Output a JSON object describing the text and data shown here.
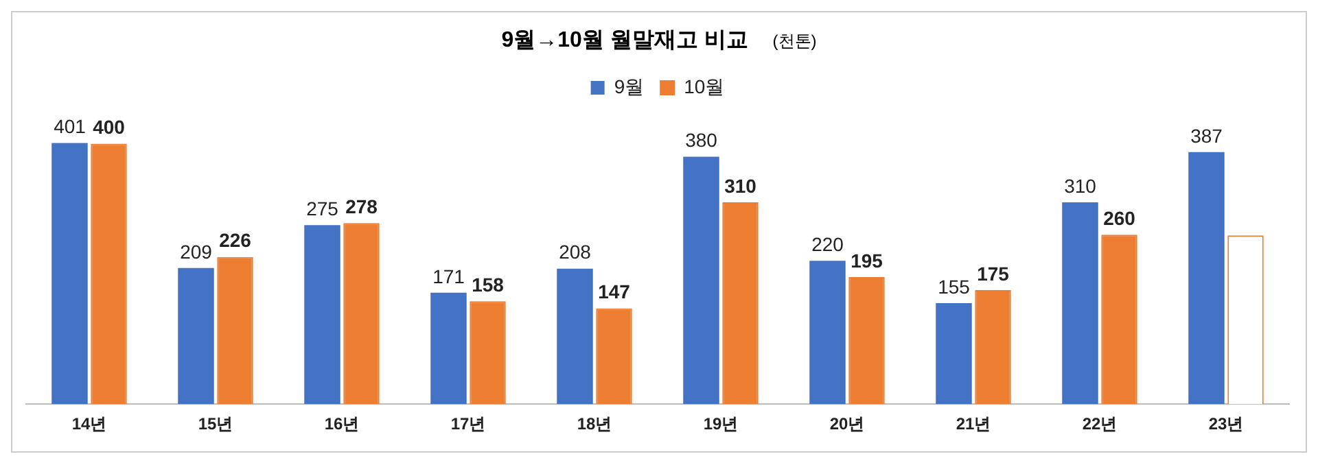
{
  "chart_data": {
    "type": "bar",
    "title": "9월→10월 월말재고 비교",
    "subtitle": "(천톤)",
    "categories": [
      "14년",
      "15년",
      "16년",
      "17년",
      "18년",
      "19년",
      "20년",
      "21년",
      "22년",
      "23년"
    ],
    "series": [
      {
        "name": "9월",
        "color": "#4472c4",
        "values": [
          401,
          209,
          275,
          171,
          208,
          380,
          220,
          155,
          310,
          387
        ],
        "value_labels": [
          "401",
          "209",
          "275",
          "171",
          "208",
          "380",
          "220",
          "155",
          "310",
          "387"
        ]
      },
      {
        "name": "10월",
        "color": "#ed7d31",
        "colors": [
          "#ed7d31",
          "#ed7d31",
          "#ed7d31",
          "#ed7d31",
          "#ed7d31",
          "#ed7d31",
          "#ed7d31",
          "#ed7d31",
          "#ed7d31",
          "#ffffff"
        ],
        "values": [
          400,
          226,
          278,
          158,
          147,
          310,
          195,
          175,
          260,
          259
        ],
        "value_labels": [
          "400",
          "226",
          "278",
          "158",
          "147",
          "310",
          "195",
          "175",
          "260",
          null
        ]
      }
    ],
    "legend": "top",
    "grid": false
  }
}
